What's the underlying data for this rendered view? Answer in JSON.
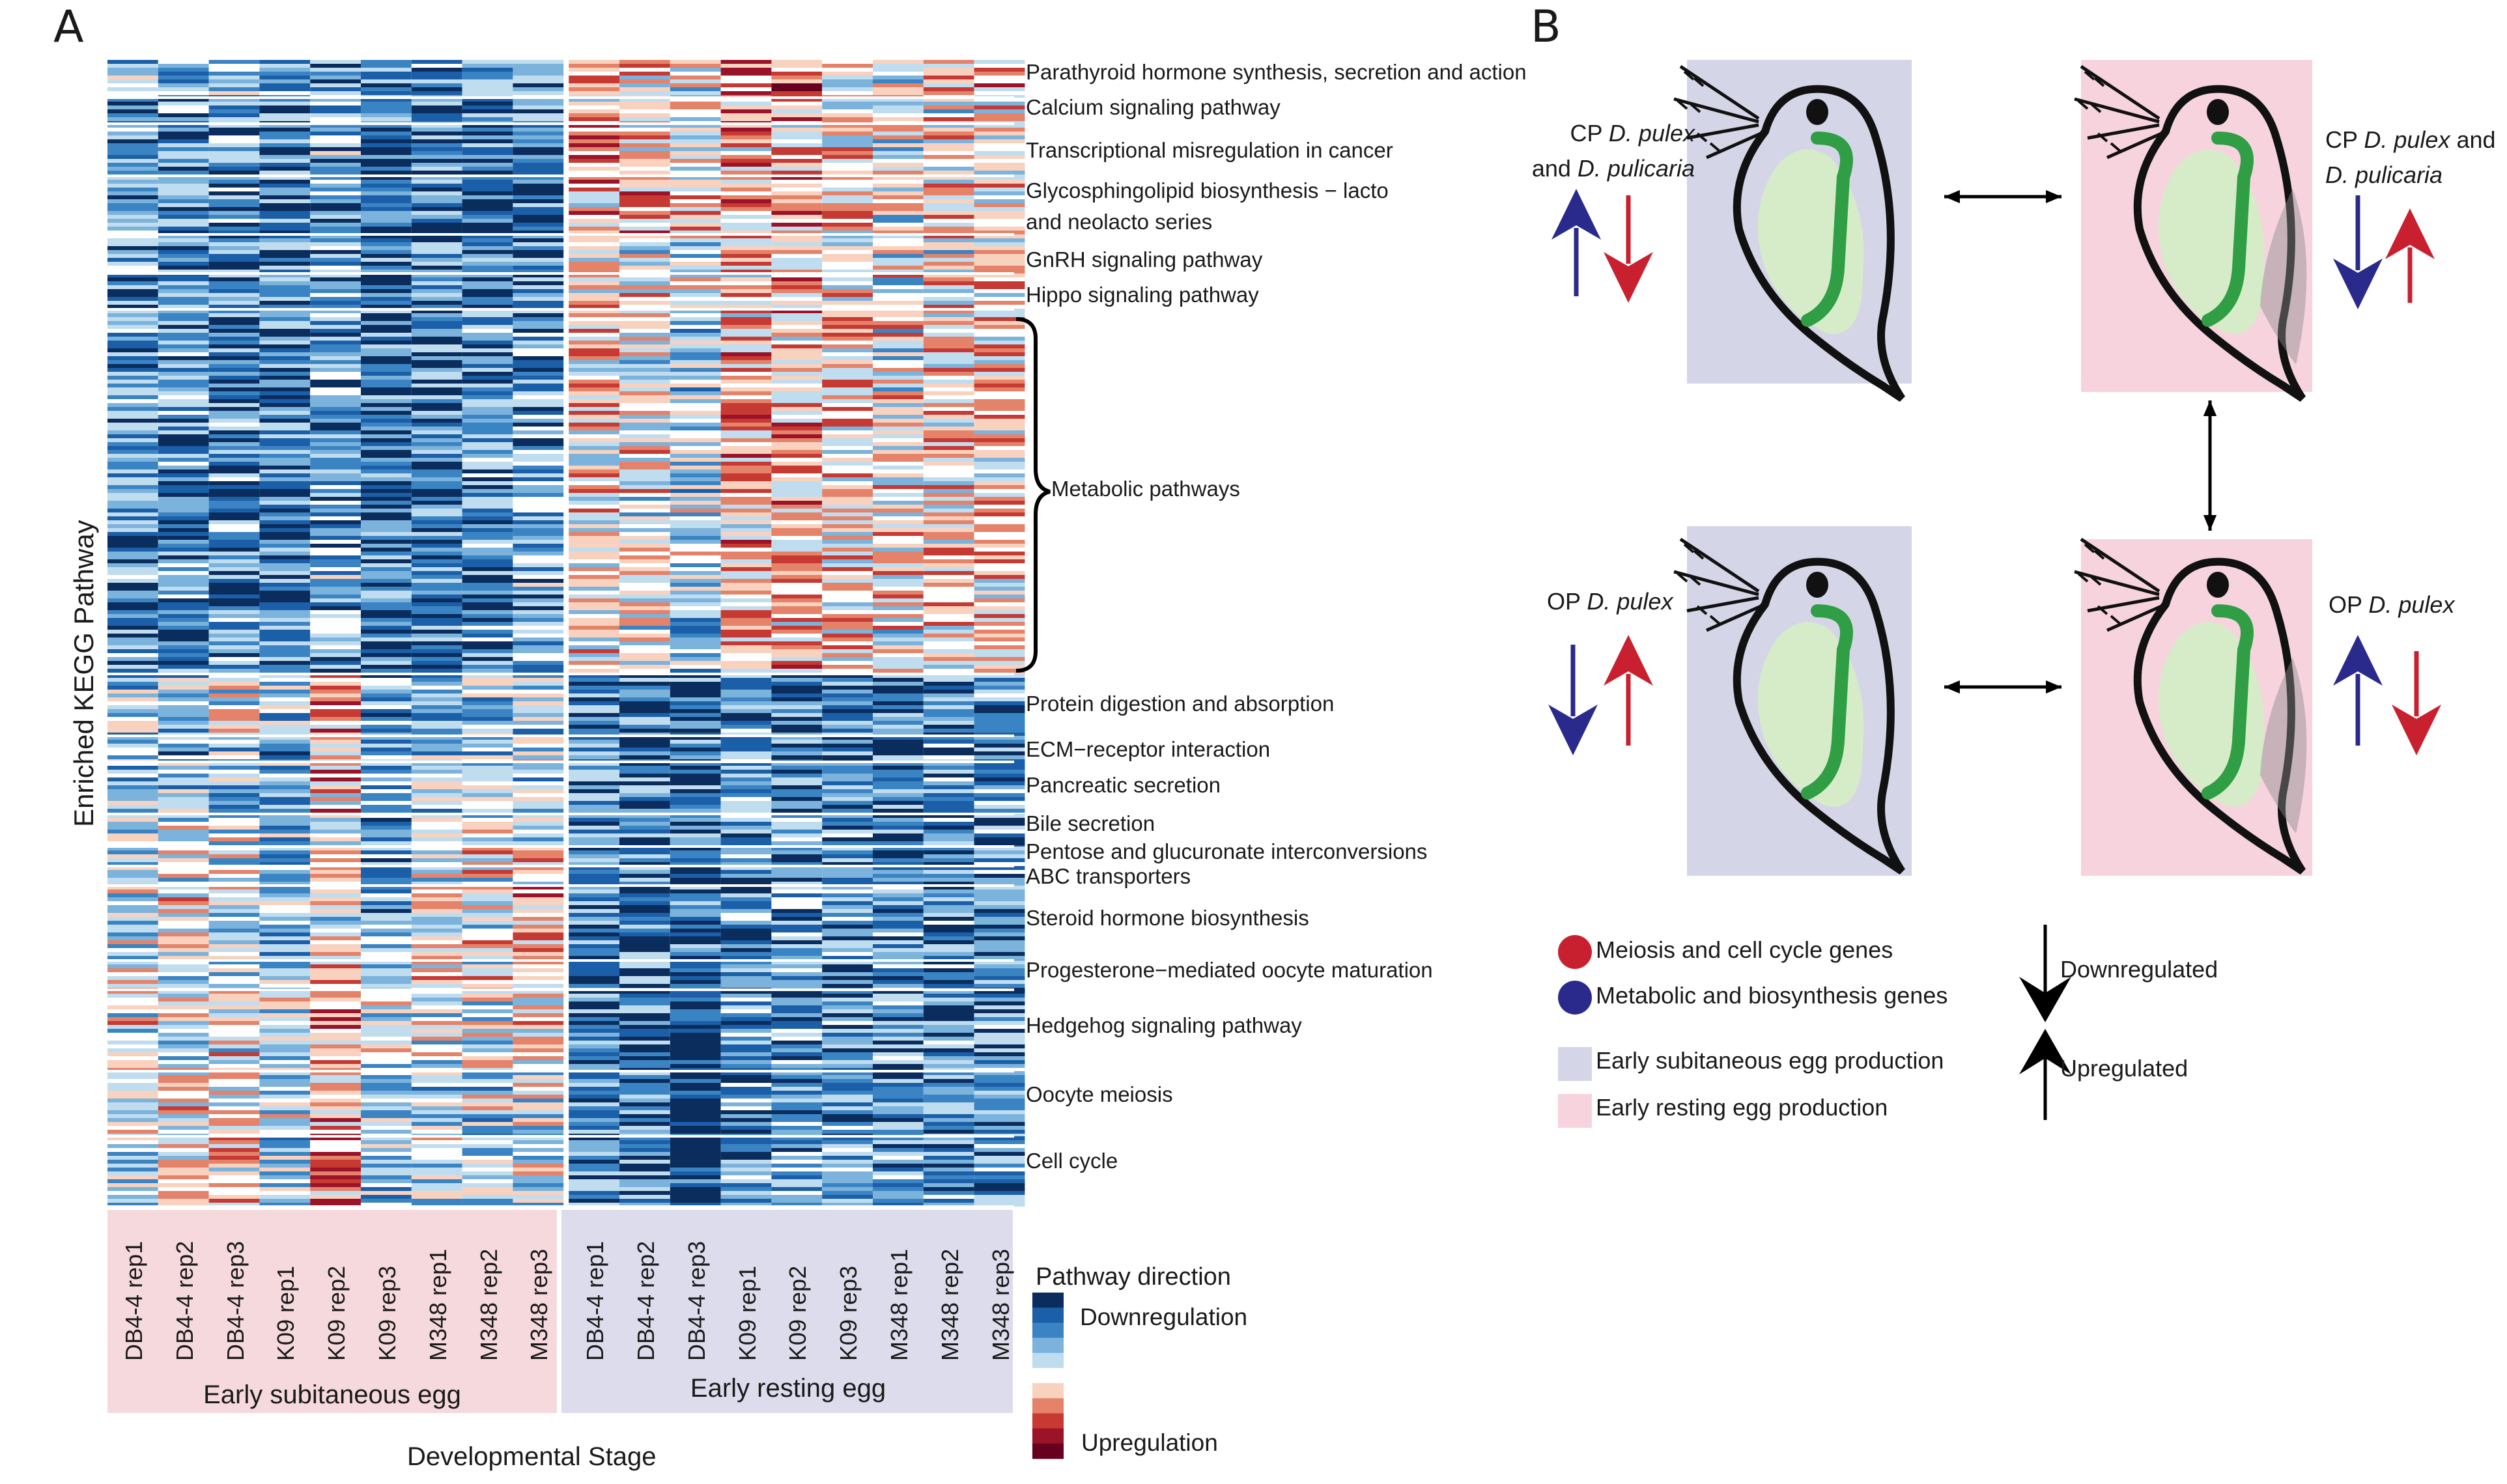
{
  "panel_a_letter": "A",
  "panel_b_letter": "B",
  "heatmap": {
    "y_title": "Enriched KEGG Pathway",
    "x_title": "Developmental Stage",
    "groups": [
      "Early subitaneous egg",
      "Early resting egg"
    ],
    "columns": [
      "DB4-4 rep1",
      "DB4-4 rep2",
      "DB4-4 rep3",
      "K09 rep1",
      "K09 rep2",
      "K09 rep3",
      "M348 rep1",
      "M348 rep2",
      "M348 rep3",
      "DB4-4 rep1",
      "DB4-4 rep2",
      "DB4-4 rep3",
      "K09 rep1",
      "K09 rep2",
      "K09 rep3",
      "M348 rep1",
      "M348 rep2",
      "M348 rep3"
    ],
    "pathways": [
      "Parathyroid hormone synthesis, secretion and action",
      "Calcium signaling pathway",
      "Transcriptional misregulation in cancer",
      "Glycosphingolipid biosynthesis − lacto",
      "and neolacto series",
      "GnRH signaling pathway",
      "Hippo signaling pathway",
      "Metabolic pathways",
      "Protein digestion and absorption",
      "ECM−receptor interaction",
      "Pancreatic secretion",
      "Bile secretion",
      "Pentose and glucuronate interconversions",
      "ABC transporters",
      "Steroid hormone biosynthesis",
      "Progesterone−mediated oocyte maturation",
      "Hedgehog signaling pathway",
      "Oocyte meiosis",
      "Cell cycle"
    ],
    "colorbar": {
      "title": "Pathway direction",
      "low_label": "Downregulation",
      "high_label": "Upregulation",
      "colors": [
        "#0b2d5e",
        "#1b5fa8",
        "#3b84c4",
        "#7bb3dc",
        "#c0dcef",
        "#ffffff",
        "#f8d2bf",
        "#e4826a",
        "#c63a33",
        "#9b1328",
        "#67001f"
      ]
    }
  },
  "panel_b": {
    "cp_sub_label_1": "CP ",
    "cp_sub_species_1": "D. pulex",
    "cp_sub_label_2": "and ",
    "cp_sub_species_2": "D. pulicaria",
    "cp_rest_label_1": "CP ",
    "cp_rest_species_1": "D. pulex",
    "cp_rest_label_2": " and",
    "cp_rest_species_2": "D. pulicaria",
    "op_sub_label": "OP ",
    "op_sub_species": "D. pulex",
    "op_rest_label": "OP ",
    "op_rest_species": "D. pulex",
    "legend": {
      "meiosis": "Meiosis and cell cycle genes",
      "metabolic": "Metabolic and biosynthesis genes",
      "subitaneous": "Early subitaneous egg production",
      "resting": "Early resting egg production",
      "down": "Downregulated",
      "up": "Upregulated"
    },
    "colors": {
      "red": "#c8202f",
      "blue": "#2a2a8c",
      "subitaneous_bg": "#d5d5e8",
      "resting_bg": "#f7d3de",
      "daphnia_body": "#d6ecc8",
      "daphnia_gut": "#2f9e44"
    }
  }
}
